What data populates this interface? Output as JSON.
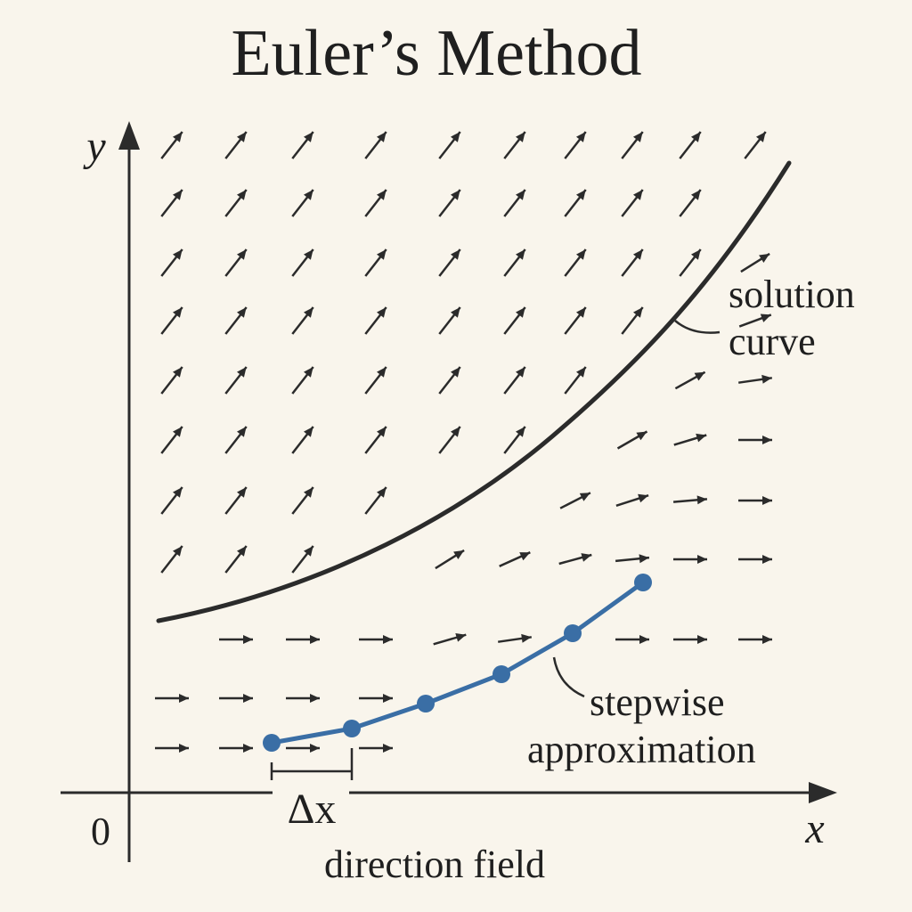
{
  "title": "Euler’s Method",
  "axes": {
    "x_label": "x",
    "y_label": "y",
    "origin_label": "0"
  },
  "labels": {
    "solution_curve": [
      "solution",
      "curve"
    ],
    "stepwise_approximation": [
      "stepwise",
      "approximation"
    ],
    "step_size": "Δx",
    "direction_field": "direction field"
  },
  "colors": {
    "background": "#f9f5ec",
    "ink": "#2b2b2b",
    "approximation": "#3a6ea5"
  }
}
